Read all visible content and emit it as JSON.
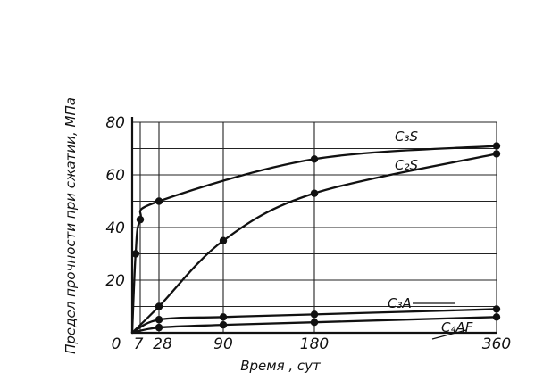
{
  "chart_data": {
    "type": "line",
    "title": "",
    "xlabel": "Время , сут",
    "ylabel": "Предел прочности при сжатии, МПа",
    "x_ticks": [
      0,
      7,
      28,
      90,
      180,
      360
    ],
    "x_tick_labels": [
      "0",
      "7",
      "28",
      "90",
      "180",
      "360"
    ],
    "y_ticks": [
      20,
      40,
      60,
      80
    ],
    "y_tick_labels": [
      "20",
      "40",
      "60",
      "80"
    ],
    "xlim": [
      0,
      360
    ],
    "ylim": [
      0,
      80
    ],
    "grid": true,
    "series": [
      {
        "name": "C3S",
        "label": "C₃S",
        "x": [
          0,
          3,
          7,
          28,
          180,
          360
        ],
        "y": [
          0,
          30,
          43,
          50,
          66,
          71
        ]
      },
      {
        "name": "C2S",
        "label": "C₂S",
        "x": [
          0,
          28,
          90,
          180,
          360
        ],
        "y": [
          0,
          10,
          35,
          53,
          68
        ]
      },
      {
        "name": "C3A",
        "label": "C₃A",
        "x": [
          0,
          28,
          90,
          180,
          360
        ],
        "y": [
          0,
          5,
          6,
          7,
          9
        ]
      },
      {
        "name": "C4AF",
        "label": "C₄AF",
        "x": [
          0,
          28,
          90,
          180,
          360
        ],
        "y": [
          0,
          2,
          3,
          4,
          6
        ]
      }
    ]
  }
}
